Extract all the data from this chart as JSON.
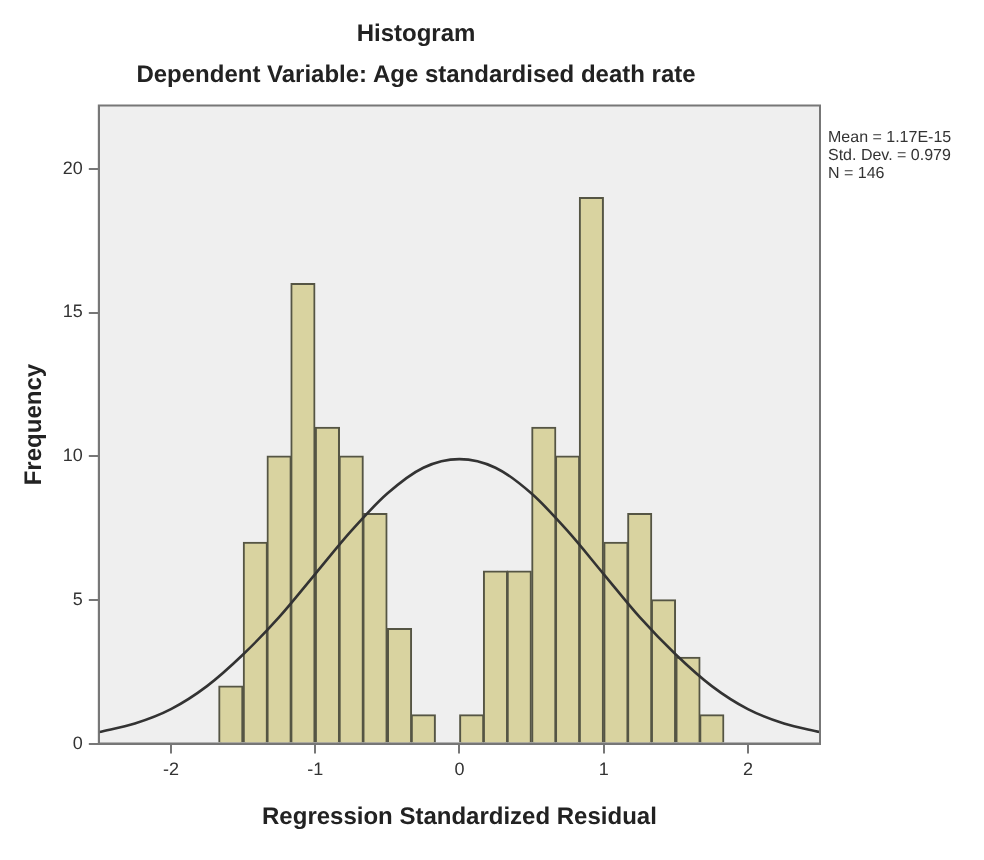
{
  "chart_data": {
    "type": "histogram",
    "title": "Histogram",
    "subtitle": "Dependent Variable: Age standardised death rate",
    "xlabel": "Regression Standardized Residual",
    "ylabel": "Frequency",
    "bins": [
      -1.67,
      -1.5,
      -1.33,
      -1.17,
      -1.0,
      -0.83,
      -0.67,
      -0.5,
      -0.33,
      -0.17,
      0,
      0.17,
      0.33,
      0.5,
      0.67,
      0.83,
      1.0,
      1.17,
      1.33,
      1.5,
      1.67,
      1.83
    ],
    "values": [
      2,
      7,
      10,
      16,
      11,
      10,
      8,
      4,
      1,
      0,
      1,
      6,
      6,
      11,
      10,
      19,
      7,
      8,
      5,
      3,
      1
    ],
    "color": "#d9d3a0",
    "series": [
      {
        "type": "line",
        "color": "#333333",
        "x": [
          -2.5,
          -2.25,
          -2,
          -1.75,
          -1.5,
          -1.25,
          -1,
          -0.75,
          -0.5,
          -0.25,
          0,
          0.25,
          0.5,
          0.75,
          1,
          1.25,
          1.5,
          1.75,
          2,
          2.25,
          2.5
        ],
        "values": [
          0.4,
          0.7,
          1.2,
          2.0,
          3.1,
          4.4,
          5.9,
          7.4,
          8.7,
          9.6,
          9.9,
          9.6,
          8.7,
          7.4,
          5.9,
          4.4,
          3.1,
          2.0,
          1.2,
          0.7,
          0.4
        ]
      }
    ],
    "marker": "none",
    "xlim": [
      -2.5,
      2.5
    ],
    "ylim": [
      0,
      22.2
    ],
    "xticks": [
      -2,
      -1,
      0,
      1,
      2
    ],
    "yticks": [
      0,
      5,
      10,
      15,
      20
    ],
    "grid": false,
    "annotations": [
      "Mean = 1.17E-15",
      "Std. Dev. = 0.979",
      "N = 146"
    ]
  }
}
